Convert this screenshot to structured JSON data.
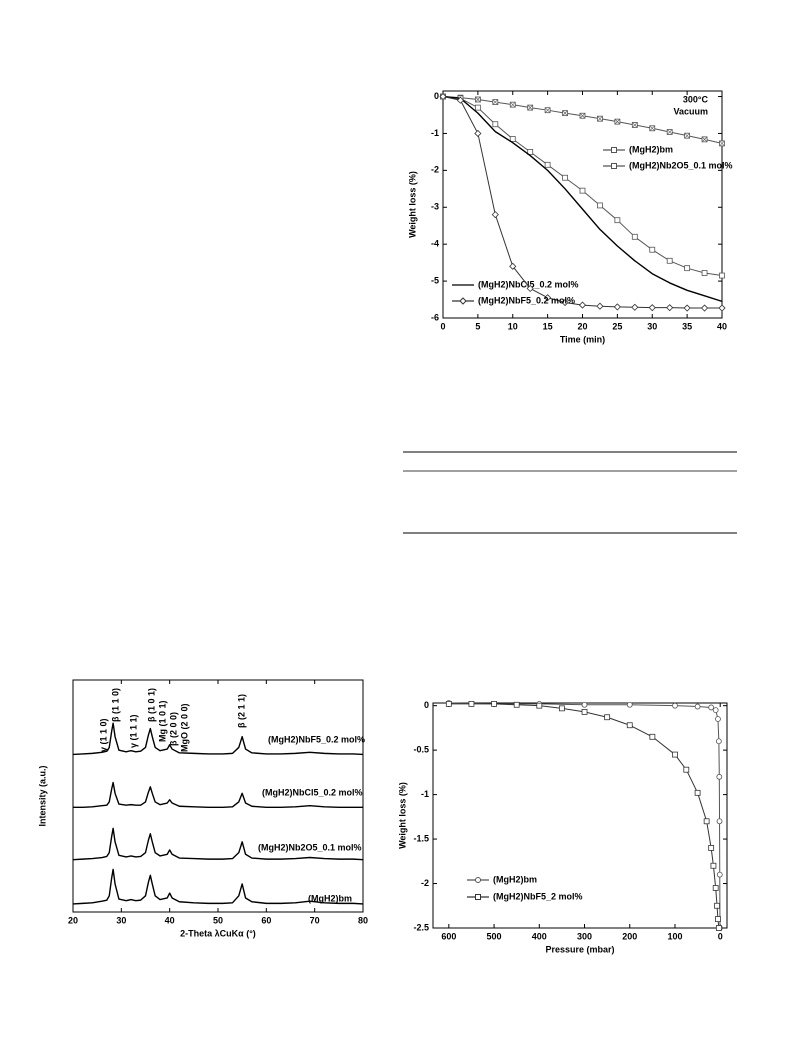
{
  "chart_data": [
    {
      "type": "line",
      "ylabel": "Weight loss (%)",
      "xlabel": "Time (min)",
      "annotations": [
        "300°C",
        "Vacuum"
      ],
      "xlim": [
        0,
        40
      ],
      "xticks": [
        0,
        5,
        10,
        15,
        20,
        25,
        30,
        35,
        40
      ],
      "ylim": [
        -6,
        0.15
      ],
      "yticks": [
        0,
        -1,
        -2,
        -3,
        -4,
        -5,
        -6
      ],
      "x": [
        0,
        2.5,
        5,
        7.5,
        10,
        12.5,
        15,
        17.5,
        20,
        22.5,
        25,
        27.5,
        30,
        32.5,
        35,
        37.5,
        40
      ],
      "series": [
        {
          "name": "(MgH2)bm",
          "color": "#555555",
          "marker": "square-x",
          "values": [
            0,
            -0.03,
            -0.08,
            -0.15,
            -0.22,
            -0.3,
            -0.37,
            -0.45,
            -0.52,
            -0.6,
            -0.68,
            -0.77,
            -0.86,
            -0.96,
            -1.06,
            -1.16,
            -1.27
          ]
        },
        {
          "name": "(MgH2)Nb2O5_0.1 mol%",
          "color": "#555555",
          "marker": "square",
          "values": [
            0,
            -0.05,
            -0.3,
            -0.75,
            -1.15,
            -1.5,
            -1.85,
            -2.2,
            -2.55,
            -2.95,
            -3.35,
            -3.8,
            -4.15,
            -4.45,
            -4.65,
            -4.78,
            -4.85
          ]
        },
        {
          "name": "(MgH2)NbCl5_0.2 mol%",
          "color": "#000000",
          "marker": "none",
          "values": [
            0,
            -0.05,
            -0.45,
            -0.95,
            -1.25,
            -1.6,
            -2.0,
            -2.5,
            -3.05,
            -3.6,
            -4.05,
            -4.45,
            -4.8,
            -5.05,
            -5.25,
            -5.4,
            -5.55
          ]
        },
        {
          "name": "(MgH2)NbF5_0.2 mol%",
          "color": "#333333",
          "marker": "diamond",
          "values": [
            0,
            -0.1,
            -1.0,
            -3.2,
            -4.6,
            -5.2,
            -5.45,
            -5.58,
            -5.65,
            -5.68,
            -5.7,
            -5.71,
            -5.72,
            -5.72,
            -5.73,
            -5.73,
            -5.73
          ]
        }
      ]
    },
    {
      "type": "line",
      "ylabel": "Intensity (a.u.)",
      "xlabel": "2-Theta λCuKα (°)",
      "annotations": [
        "γ (1 1 0)",
        "β (1 1 0)",
        "γ (1 1 1)",
        "β (1 0 1)",
        "Mg (1 0 1)",
        "β (2 0 0)",
        "MgO (2 0 0)",
        "β (2 1 1)"
      ],
      "xlim": [
        20,
        80
      ],
      "xticks": [
        20,
        30,
        40,
        50,
        60,
        70,
        80
      ],
      "ylim": [
        0,
        4.3
      ],
      "x": [
        20,
        22,
        24,
        26,
        27,
        27.5,
        28,
        28.3,
        28.7,
        29.5,
        31,
        32,
        33,
        34,
        35,
        35.6,
        36,
        36.4,
        37,
        38,
        39.5,
        40,
        40.5,
        42,
        45,
        48,
        51,
        53,
        54.3,
        55,
        55.7,
        57,
        60,
        63,
        66,
        69,
        72,
        75,
        78,
        80
      ],
      "series": [
        {
          "name": "(MgH2)NbF5_0.2 mol%",
          "color": "#000000",
          "marker": "none",
          "values": [
            2.92,
            2.93,
            2.94,
            2.96,
            2.98,
            3.05,
            3.35,
            3.5,
            3.25,
            3.0,
            2.97,
            2.99,
            2.97,
            2.98,
            3.05,
            3.28,
            3.4,
            3.25,
            3.05,
            2.99,
            3.02,
            3.1,
            3.02,
            2.95,
            2.94,
            2.93,
            2.93,
            2.94,
            3.05,
            3.25,
            3.02,
            2.95,
            2.93,
            2.93,
            2.94,
            2.96,
            2.94,
            2.93,
            2.93,
            2.92
          ]
        },
        {
          "name": "(MgH2)NbCl5_0.2 mol%",
          "color": "#000000",
          "marker": "none",
          "values": [
            1.94,
            1.94,
            1.95,
            1.97,
            1.98,
            2.04,
            2.28,
            2.4,
            2.2,
            2.0,
            1.98,
            1.99,
            1.98,
            1.98,
            2.04,
            2.22,
            2.32,
            2.2,
            2.04,
            1.99,
            2.02,
            2.08,
            2.02,
            1.96,
            1.95,
            1.94,
            1.94,
            1.95,
            2.04,
            2.2,
            2.02,
            1.96,
            1.94,
            1.94,
            1.95,
            1.97,
            1.95,
            1.94,
            1.94,
            1.94
          ]
        },
        {
          "name": "(MgH2)Nb2O5_0.1 mol%",
          "color": "#000000",
          "marker": "none",
          "values": [
            0.97,
            0.98,
            0.99,
            1.01,
            1.03,
            1.1,
            1.4,
            1.55,
            1.3,
            1.05,
            1.02,
            1.04,
            1.02,
            1.03,
            1.1,
            1.33,
            1.45,
            1.3,
            1.1,
            1.04,
            1.07,
            1.15,
            1.07,
            1.0,
            0.99,
            0.98,
            0.98,
            0.99,
            1.1,
            1.3,
            1.07,
            1.0,
            0.98,
            0.98,
            0.99,
            1.01,
            0.99,
            0.98,
            0.98,
            0.97
          ]
        },
        {
          "name": "(MgH2)bm",
          "color": "#000000",
          "marker": "none",
          "values": [
            0.15,
            0.16,
            0.17,
            0.2,
            0.22,
            0.3,
            0.63,
            0.79,
            0.52,
            0.24,
            0.21,
            0.23,
            0.21,
            0.22,
            0.3,
            0.55,
            0.68,
            0.52,
            0.3,
            0.23,
            0.26,
            0.35,
            0.26,
            0.19,
            0.17,
            0.16,
            0.16,
            0.17,
            0.3,
            0.52,
            0.26,
            0.19,
            0.16,
            0.16,
            0.17,
            0.2,
            0.17,
            0.16,
            0.16,
            0.15
          ]
        }
      ]
    },
    {
      "type": "line",
      "ylabel": "Weight loss (%)",
      "xlabel": "Pressure (mbar)",
      "xlim": [
        635,
        -15
      ],
      "xticks": [
        600,
        500,
        400,
        300,
        200,
        100,
        0
      ],
      "ylim": [
        -2.5,
        0.03
      ],
      "yticks": [
        0,
        -0.5,
        -1,
        -1.5,
        -2,
        -2.5
      ],
      "series": [
        {
          "name": "(MgH2)bm",
          "color": "#555555",
          "marker": "circle",
          "x": [
            600,
            500,
            400,
            300,
            200,
            100,
            50,
            20,
            10,
            5,
            3,
            2,
            1.5,
            1,
            0.5
          ],
          "values": [
            0.03,
            0.02,
            0.02,
            0.01,
            0.01,
            0,
            -0.01,
            -0.02,
            -0.05,
            -0.15,
            -0.4,
            -0.8,
            -1.3,
            -1.9,
            -2.5
          ]
        },
        {
          "name": "(MgH2)NbF5_2 mol%",
          "color": "#333333",
          "marker": "square",
          "x": [
            600,
            550,
            500,
            450,
            400,
            350,
            300,
            250,
            200,
            150,
            100,
            75,
            50,
            30,
            20,
            15,
            10,
            7,
            5,
            3
          ],
          "values": [
            0.02,
            0.02,
            0.02,
            0.01,
            0,
            -0.03,
            -0.07,
            -0.13,
            -0.22,
            -0.35,
            -0.55,
            -0.72,
            -0.98,
            -1.3,
            -1.6,
            -1.8,
            -2.05,
            -2.25,
            -2.4,
            -2.5
          ]
        }
      ]
    }
  ]
}
